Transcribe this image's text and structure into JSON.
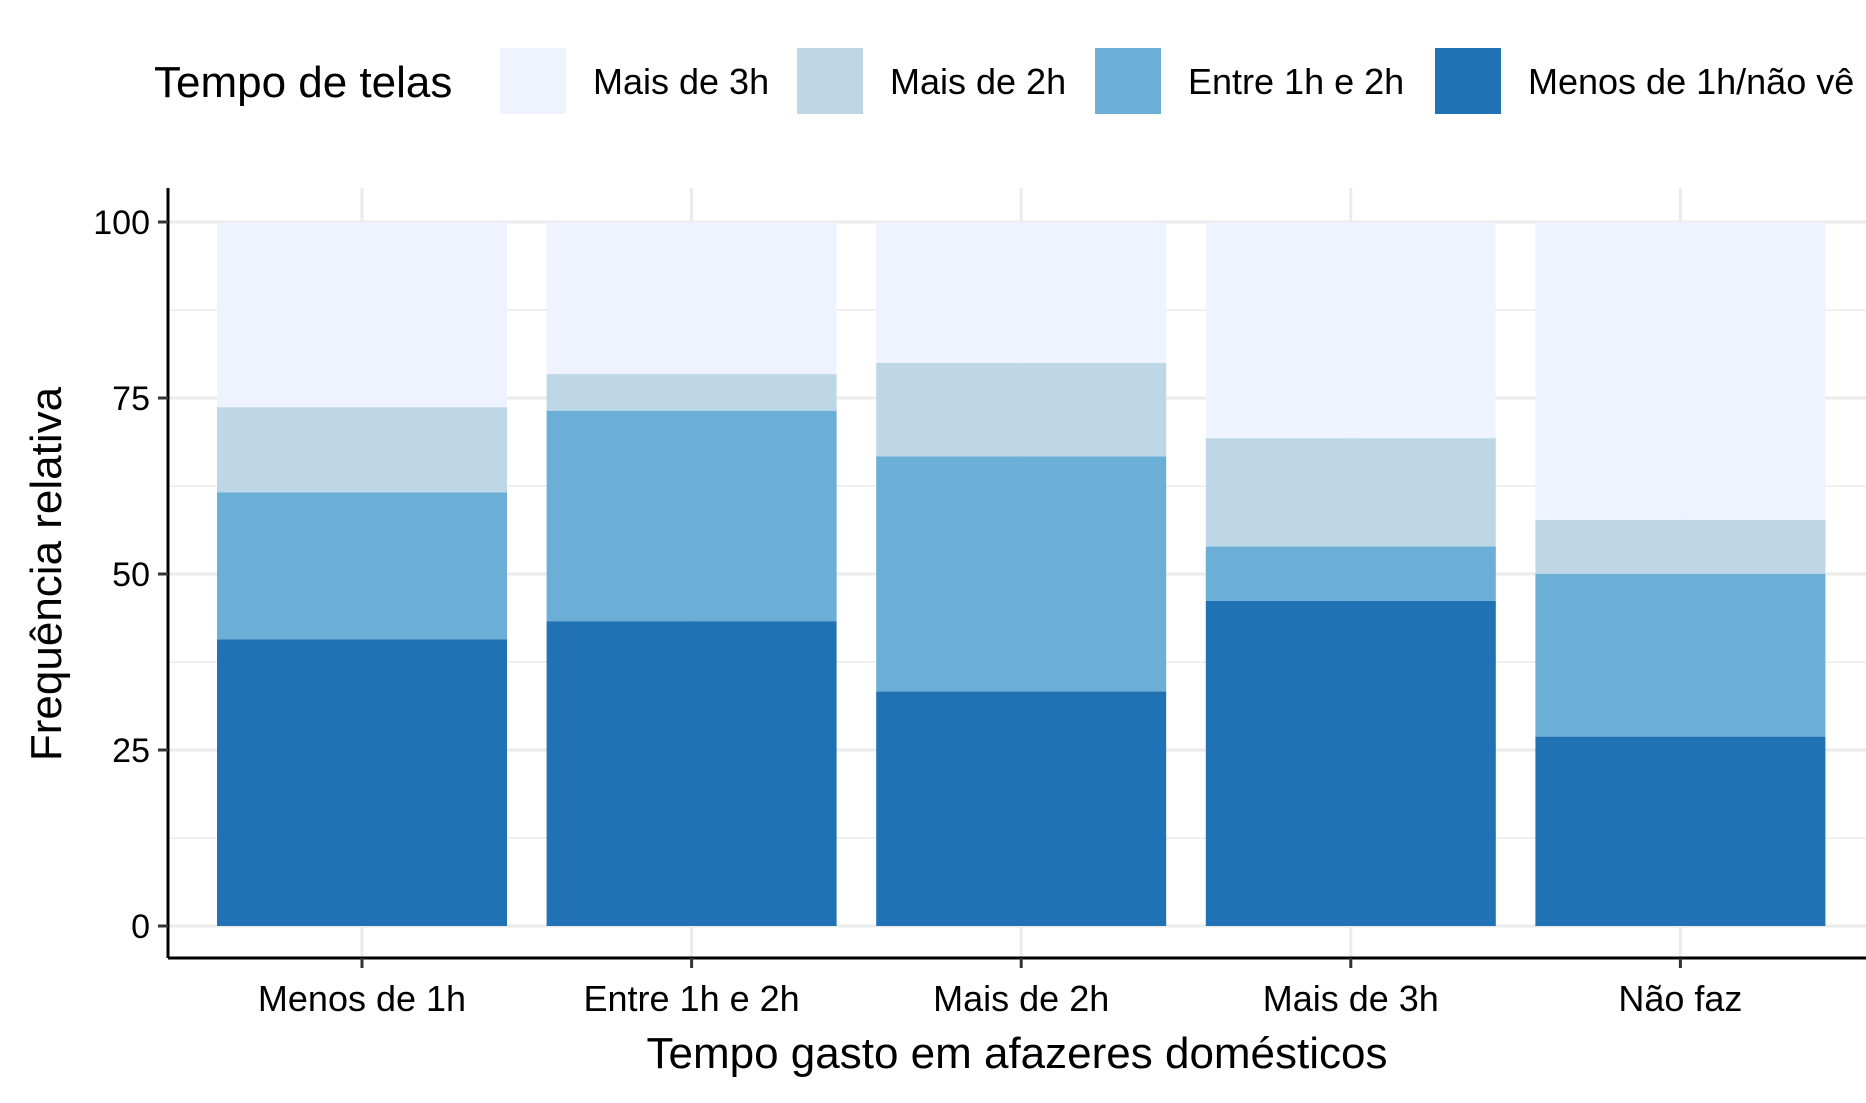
{
  "chart_data": {
    "type": "bar",
    "stacked": true,
    "title": "",
    "xlabel": "Tempo gasto em afazeres domésticos",
    "ylabel": "Frequência relativa",
    "ylim": [
      0,
      100
    ],
    "yticks": [
      0,
      25,
      50,
      75,
      100
    ],
    "grid": true,
    "legend": {
      "title": "Tempo de telas",
      "position": "top"
    },
    "categories": [
      "Menos de 1h",
      "Entre 1h e 2h",
      "Mais de 2h",
      "Mais de 3h",
      "Não faz"
    ],
    "series": [
      {
        "name": "Menos de 1h/não vê",
        "color": "#2171b5",
        "values": [
          40.7,
          43.3,
          33.3,
          46.2,
          26.9
        ]
      },
      {
        "name": "Entre 1h e 2h",
        "color": "#6baed6",
        "values": [
          20.9,
          29.9,
          33.4,
          7.7,
          23.1
        ]
      },
      {
        "name": "Mais de 2h",
        "color": "#bdd7e7",
        "values": [
          12.1,
          5.2,
          13.3,
          15.4,
          7.7
        ]
      },
      {
        "name": "Mais de 3h",
        "color": "#eff3ff",
        "values": [
          26.3,
          21.6,
          20.0,
          30.7,
          42.3
        ]
      }
    ],
    "legend_order": [
      "Mais de 3h",
      "Mais de 2h",
      "Entre 1h e 2h",
      "Menos de 1h/não vê"
    ]
  }
}
